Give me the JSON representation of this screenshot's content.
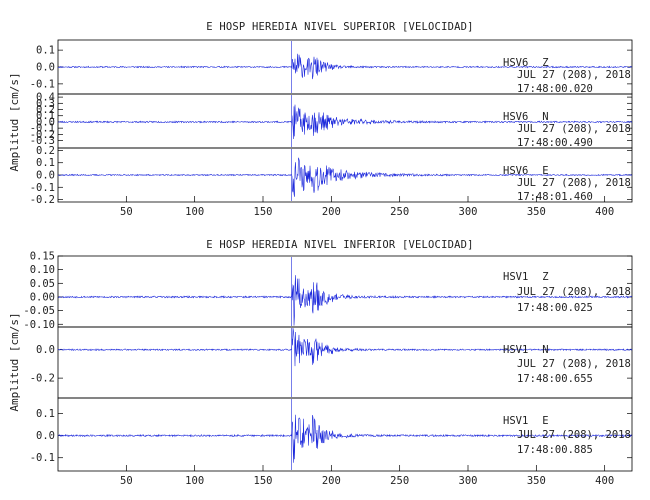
{
  "colors": {
    "trace": "#1f2bdc",
    "axes": "#000000",
    "text": "#222222",
    "background": "#ffffff"
  },
  "chart_data": [
    {
      "type": "line",
      "title": "E HOSP HEREDIA NIVEL SUPERIOR [VELOCIDAD]",
      "ylabel": "Amplitud [cm/s]",
      "xlim": [
        0,
        420
      ],
      "x_ticks": [
        "50",
        "100",
        "150",
        "200",
        "250",
        "300",
        "350",
        "400"
      ],
      "event_onset_x": 171,
      "panels": [
        {
          "station": "HSV6",
          "component": "Z",
          "date_text": "JUL 27 (208), 2018",
          "time_text": "17:48:00.020",
          "ylim": [
            -0.16,
            0.16
          ],
          "y_ticks": [
            "0.1",
            "0.0",
            "-0.1"
          ],
          "y_tick_values": [
            0.1,
            0.0,
            -0.1
          ],
          "baseline_noise": 0.004,
          "peak_amplitude": 0.15,
          "decay": 0.09,
          "seed": 11
        },
        {
          "station": "HSV6",
          "component": "N",
          "date_text": "JUL 27 (208), 2018",
          "time_text": "17:48:00.490",
          "ylim": [
            -0.42,
            0.45
          ],
          "y_ticks": [
            "0.4",
            "0.3",
            "0.2",
            "0.1",
            "0.0",
            "-0.1",
            "-0.2",
            "-0.3"
          ],
          "y_tick_values": [
            0.4,
            0.3,
            0.2,
            0.1,
            0.0,
            -0.1,
            -0.2,
            -0.3
          ],
          "baseline_noise": 0.012,
          "peak_amplitude": 0.33,
          "decay": 0.045,
          "seed": 23
        },
        {
          "station": "HSV6",
          "component": "E",
          "date_text": "JUL 27 (208), 2018",
          "time_text": "17:48:01.460",
          "ylim": [
            -0.22,
            0.22
          ],
          "y_ticks": [
            "0.2",
            "0.1",
            "0.0",
            "-0.1",
            "-0.2"
          ],
          "y_tick_values": [
            0.2,
            0.1,
            0.0,
            -0.1,
            -0.2
          ],
          "baseline_noise": 0.005,
          "peak_amplitude": 0.2,
          "decay": 0.04,
          "seed": 37
        }
      ]
    },
    {
      "type": "line",
      "title": "E HOSP HEREDIA NIVEL INFERIOR [VELOCIDAD]",
      "ylabel": "Amplitud [cm/s]",
      "xlim": [
        0,
        420
      ],
      "x_ticks": [
        "50",
        "100",
        "150",
        "200",
        "250",
        "300",
        "350",
        "400"
      ],
      "event_onset_x": 171,
      "panels": [
        {
          "station": "HSV1",
          "component": "Z",
          "date_text": "JUL 27 (208), 2018",
          "time_text": "17:48:00.025",
          "ylim": [
            -0.11,
            0.15
          ],
          "y_ticks": [
            "0.15",
            "0.10",
            "0.05",
            "0.00",
            "-0.05",
            "-0.10"
          ],
          "y_tick_values": [
            0.15,
            0.1,
            0.05,
            0.0,
            -0.05,
            -0.1
          ],
          "baseline_noise": 0.003,
          "peak_amplitude": 0.13,
          "decay": 0.08,
          "seed": 53
        },
        {
          "station": "HSV1",
          "component": "N",
          "date_text": "JUL 27 (208), 2018",
          "time_text": "17:48:00.655",
          "ylim": [
            -0.34,
            0.16
          ],
          "y_ticks": [
            "0.0",
            "-0.2"
          ],
          "y_tick_values": [
            0.0,
            -0.2
          ],
          "baseline_noise": 0.005,
          "peak_amplitude": 0.2,
          "decay": 0.08,
          "seed": 71
        },
        {
          "station": "HSV1",
          "component": "E",
          "date_text": "JUL 27 (208), 2018",
          "time_text": "17:48:00.885",
          "ylim": [
            -0.16,
            0.17
          ],
          "y_ticks": [
            "0.1",
            "0.0",
            "-0.1"
          ],
          "y_tick_values": [
            0.1,
            0.0,
            -0.1
          ],
          "baseline_noise": 0.004,
          "peak_amplitude": 0.15,
          "decay": 0.08,
          "seed": 89
        }
      ]
    }
  ]
}
